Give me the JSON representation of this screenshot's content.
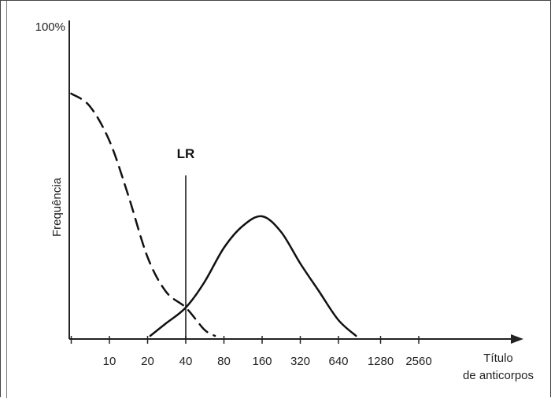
{
  "chart_data": {
    "type": "line",
    "title": "",
    "ylabel": "Frequência",
    "xlabel_line1": "Título",
    "xlabel_line2": "de anticorpos",
    "ytop_label": "100%",
    "categories": [
      "10",
      "20",
      "40",
      "80",
      "160",
      "320",
      "640",
      "1280",
      "2560"
    ],
    "x_scale": "log2",
    "ylim": [
      0,
      100
    ],
    "grid": false,
    "reference_line": {
      "label": "LR",
      "x": 40,
      "height": 52
    },
    "series": [
      {
        "style": "dashed",
        "points": [
          [
            5,
            78
          ],
          [
            7,
            74
          ],
          [
            10,
            63
          ],
          [
            14,
            46
          ],
          [
            20,
            26
          ],
          [
            28,
            15
          ],
          [
            40,
            10
          ],
          [
            56,
            3
          ],
          [
            68,
            1
          ]
        ]
      },
      {
        "style": "solid",
        "points": [
          [
            21,
            1
          ],
          [
            28,
            5
          ],
          [
            40,
            10
          ],
          [
            56,
            18
          ],
          [
            80,
            29
          ],
          [
            113,
            36
          ],
          [
            160,
            39
          ],
          [
            226,
            34
          ],
          [
            320,
            24
          ],
          [
            452,
            15
          ],
          [
            640,
            6
          ],
          [
            880,
            1
          ]
        ]
      }
    ]
  }
}
